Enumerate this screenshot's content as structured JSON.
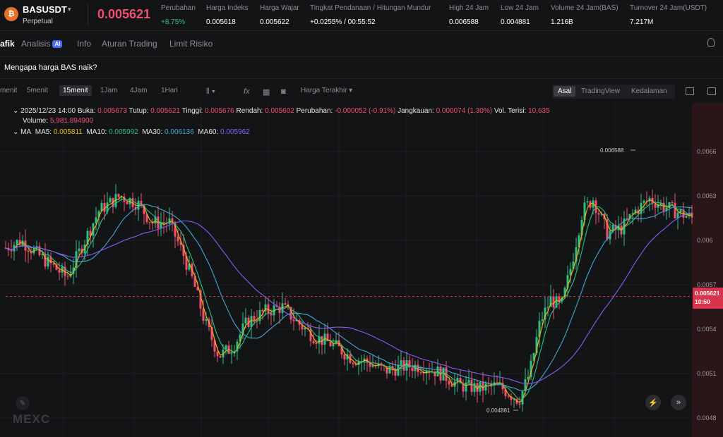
{
  "header": {
    "coin_icon": "bas-coin-icon",
    "symbol": "BASUSDT",
    "type": "Perpetual",
    "last_price": "0.005621",
    "stats": [
      {
        "label": "Perubahan",
        "value": "+8.75%"
      },
      {
        "label": "Harga Indeks",
        "value": "0.005618"
      },
      {
        "label": "Harga Wajar",
        "value": "0.005622"
      },
      {
        "label": "Tingkat Pendanaan / Hitungan Mundur",
        "value": "+0.0255% / 00:55:52"
      },
      {
        "label": "High 24 Jam",
        "value": "0.006588"
      },
      {
        "label": "Low 24 Jam",
        "value": "0.004881"
      },
      {
        "label": "Volume 24 Jam(BAS)",
        "value": "1.216B"
      },
      {
        "label": "Turnover 24 Jam(USDT)",
        "value": "7.217M"
      }
    ]
  },
  "tabs": [
    {
      "label": "afik"
    },
    {
      "label": "Analisis"
    },
    {
      "label": "Info"
    },
    {
      "label": "Aturan Trading"
    },
    {
      "label": "Limit Risiko"
    }
  ],
  "ai_badge": "AI",
  "question": "Mengapa harga BAS naik?",
  "toolbar": {
    "timeframes": [
      "menit",
      "5menit",
      "15menit",
      "1Jam",
      "4Jam",
      "1Hari"
    ],
    "active_timeframe": "15menit",
    "price_type": "Harga Terakhir",
    "views": [
      "Asal",
      "TradingView",
      "Kedalaman"
    ],
    "active_view": "Asal"
  },
  "candle_info": {
    "time": "2025/12/23 14:00",
    "open_label": "Buka:",
    "open": "0.005673",
    "close_label": "Tutup:",
    "close": "0.005621",
    "high_label": "Tinggi:",
    "high": "0.005676",
    "low_label": "Rendah:",
    "low": "0.005602",
    "change_label": "Perubahan:",
    "change": "-0.000052 (-0.91%)",
    "range_label": "Jangkauan:",
    "range": "0.000074 (1.30%)",
    "filled_label": "Vol. Terisi:",
    "filled": "10,635",
    "volume_label": "Volume:",
    "volume": "5,981.894900"
  },
  "ma": {
    "title": "MA",
    "ma5_label": "MA5:",
    "ma5": "0.005811",
    "ma10_label": "MA10:",
    "ma10": "0.005992",
    "ma30_label": "MA30:",
    "ma30": "0.006136",
    "ma60_label": "MA60:",
    "ma60": "0.005962"
  },
  "chart": {
    "price_axis": [
      "0.0066",
      "0.0063",
      "0.006",
      "0.0057",
      "0.0054",
      "0.0051",
      "0.0048"
    ],
    "high_marker": "0.006588",
    "low_marker": "0.004881",
    "current_price": "0.005621",
    "countdown": "10:50",
    "colors": {
      "up": "#2ebd85",
      "down": "#f0506e",
      "ma5": "#f0b90b",
      "ma10": "#2ebd85",
      "ma30": "#3fa9d4",
      "ma60": "#8a5cf6"
    }
  },
  "watermark": "MEXC"
}
